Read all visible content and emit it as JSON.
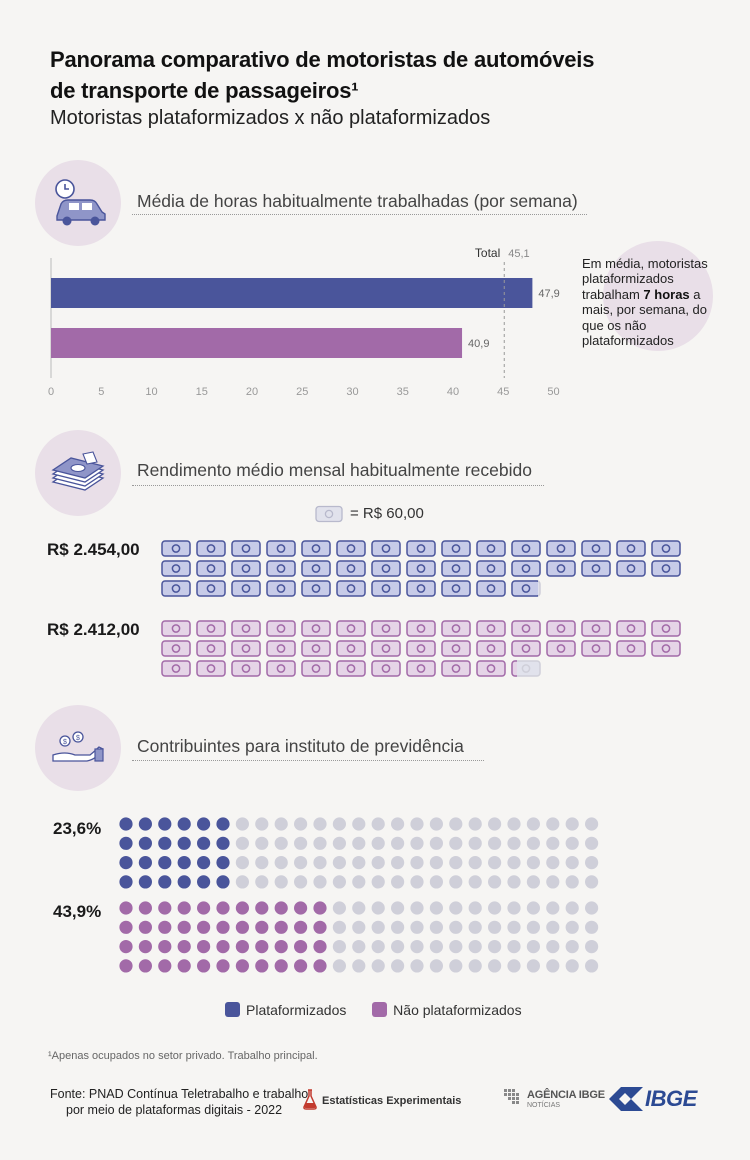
{
  "header": {
    "title_line1": "Panorama comparativo de motoristas de automóveis",
    "title_line2": "de transporte de passageiros¹",
    "subtitle": "Motoristas plataformizados x não plataformizados"
  },
  "colors": {
    "plataformizados": "#4a559b",
    "nao_plataformizados": "#a26aa8",
    "bill_fill_plat": "#c7cbe8",
    "bill_fill_nao": "#e5d4e7",
    "inactive": "#cfcfd9",
    "section_circle": "#e9dfe8"
  },
  "sections": {
    "hours": {
      "title": "Média de horas habitualmente trabalhadas (por semana)",
      "icon": "clock-car-icon"
    },
    "income": {
      "title": "Rendimento médio mensal habitualmente recebido",
      "icon": "money-stack-icon"
    },
    "pension": {
      "title": "Contribuintes para instituto de previdência",
      "icon": "hand-coins-icon"
    }
  },
  "callout": {
    "pre": "Em média, motoristas plataformizados trabalham ",
    "bold": "7 horas",
    "post": " a mais, por semana, do que os não plataformizados"
  },
  "chart_data": [
    {
      "type": "bar",
      "orientation": "horizontal",
      "categories": [
        "Plataformizados",
        "Não plataformizados"
      ],
      "values": [
        47.9,
        40.9
      ],
      "value_labels": [
        "47,9",
        "40,9"
      ],
      "reference_line": {
        "label": "Total",
        "value": 45.1,
        "value_label": "45,1"
      },
      "xlim": [
        0,
        50
      ],
      "x_ticks": [
        "0",
        "5",
        "10",
        "15",
        "20",
        "25",
        "30",
        "35",
        "40",
        "45",
        "50"
      ],
      "grid": false
    },
    {
      "type": "pictogram",
      "unit_label": "= R$ 60,00",
      "unit_value": 60,
      "series": [
        {
          "value_label": "R$ 2.454,00",
          "value": 2454,
          "units": 40.9
        },
        {
          "value_label": "R$ 2.412,00",
          "value": 2412,
          "units": 40.2
        }
      ]
    },
    {
      "type": "dot-matrix",
      "series": [
        {
          "value_label": "23,6%",
          "value": 23.6
        },
        {
          "value_label": "43,9%",
          "value": 43.9
        }
      ]
    }
  ],
  "legend": [
    "Plataformizados",
    "Não plataformizados"
  ],
  "footnote": "¹Apenas ocupados no setor privado. Trabalho principal.",
  "footer": {
    "source_line1": "Fonte: PNAD Contínua Teletrabalho e trabalho",
    "source_line2": "por meio de plataformas digitais - 2022",
    "experimental_label": "Estatísticas Experimentais",
    "agencia_label": "AGÊNCIA IBGE",
    "agencia_sub": "NOTÍCIAS",
    "ibge_logo": "IBGE"
  }
}
